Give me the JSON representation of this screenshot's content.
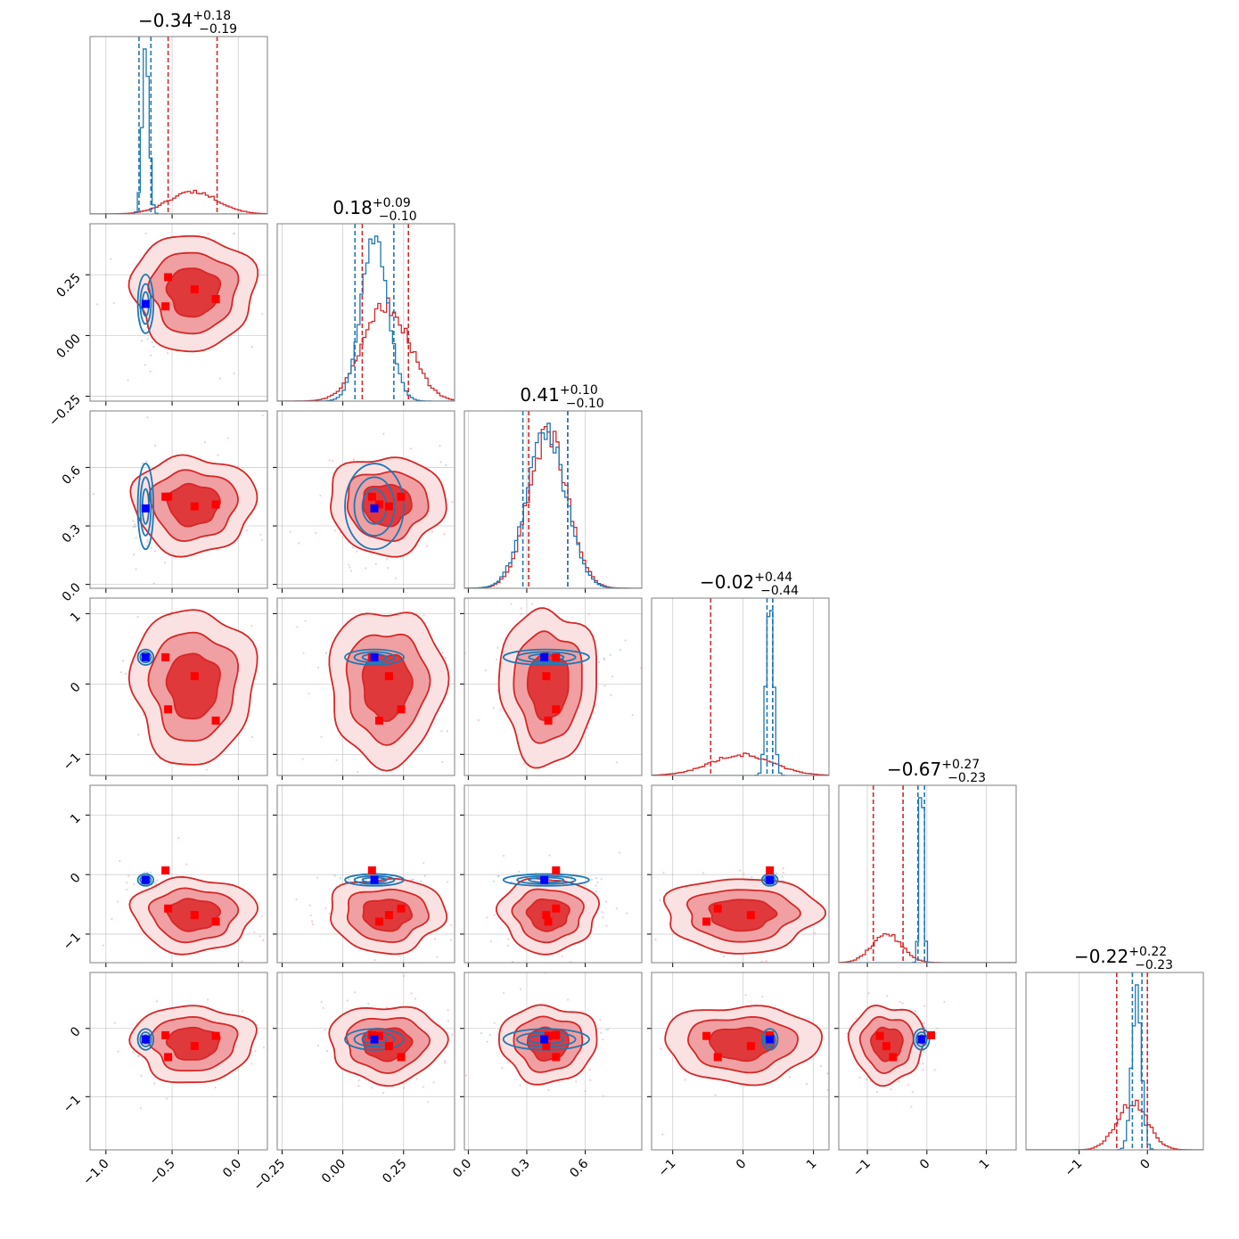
{
  "chart_data": {
    "type": "scatter",
    "subtype": "corner-plot",
    "n_params": 6,
    "colors": {
      "series_a": "#d62728",
      "series_b": "#1f77b4",
      "marker_a": "#ff0000",
      "marker_b": "#0000ff",
      "contour_fill_levels": [
        "#fbe2e2",
        "#f0a0a2",
        "#e0393c"
      ]
    },
    "grid": true,
    "params": [
      {
        "title": {
          "median": "−0.34",
          "plus": "+0.18",
          "minus": "−0.19"
        },
        "range": [
          -1.12,
          0.22
        ],
        "ticks": [
          -1.0,
          -0.5,
          0.0
        ],
        "tick_labels": [
          "−1.0",
          "−0.5",
          "0.0"
        ]
      },
      {
        "title": {
          "median": "0.18",
          "plus": "+0.09",
          "minus": "−0.10"
        },
        "range": [
          -0.27,
          0.46
        ],
        "ticks": [
          -0.25,
          0.0,
          0.25
        ],
        "tick_labels": [
          "−0.25",
          "0.00",
          "0.25"
        ]
      },
      {
        "title": {
          "median": "0.41",
          "plus": "+0.10",
          "minus": "−0.10"
        },
        "range": [
          -0.02,
          0.89
        ],
        "ticks": [
          0.0,
          0.3,
          0.6
        ],
        "tick_labels": [
          "0.0",
          "0.3",
          "0.6"
        ]
      },
      {
        "title": {
          "median": "−0.02",
          "plus": "+0.44",
          "minus": "−0.44"
        },
        "range": [
          -1.3,
          1.22
        ],
        "ticks": [
          -1,
          0,
          1
        ],
        "tick_labels": [
          "−1",
          "0",
          "1"
        ]
      },
      {
        "title": {
          "median": "−0.67",
          "plus": "+0.27",
          "minus": "−0.23"
        },
        "range": [
          -1.48,
          1.5
        ],
        "ticks": [
          -1,
          0,
          1
        ],
        "tick_labels": [
          "−1",
          "0",
          "1"
        ]
      },
      {
        "title": {
          "median": "−0.22",
          "plus": "+0.22",
          "minus": "−0.23"
        },
        "range": [
          -1.78,
          0.82
        ],
        "ticks": [
          -1,
          0
        ],
        "tick_labels": [
          "−1",
          "0"
        ]
      }
    ],
    "series": [
      {
        "color_key": "series_a",
        "centers": [
          -0.34,
          0.18,
          0.41,
          -0.02,
          -0.67,
          -0.22
        ],
        "sigmas": [
          0.185,
          0.095,
          0.1,
          0.44,
          0.25,
          0.225
        ],
        "quantiles": [
          [
            -0.53,
            -0.16
          ],
          [
            0.08,
            0.27
          ],
          [
            0.31,
            0.51
          ],
          [
            -0.46,
            0.42
          ],
          [
            -0.9,
            -0.4
          ],
          [
            -0.45,
            0.0
          ]
        ],
        "markers": [
          [
            -0.55,
            0.12,
            0.45,
            0.38,
            0.07,
            -0.1
          ],
          [
            -0.33,
            0.19,
            0.4,
            0.11,
            -0.68,
            -0.26
          ],
          [
            -0.17,
            0.15,
            0.41,
            -0.52,
            -0.79,
            -0.11
          ],
          [
            -0.53,
            0.24,
            0.45,
            -0.36,
            -0.57,
            -0.42
          ]
        ]
      },
      {
        "color_key": "series_b",
        "centers": [
          -0.7,
          0.13,
          0.4,
          0.38,
          -0.09,
          -0.16
        ],
        "sigmas": [
          0.025,
          0.055,
          0.1,
          0.05,
          0.035,
          0.07
        ],
        "quantiles": [
          [
            -0.75,
            -0.66
          ],
          [
            0.05,
            0.21
          ],
          [
            0.28,
            0.51
          ],
          [
            0.34,
            0.42
          ],
          [
            -0.15,
            -0.04
          ],
          [
            -0.22,
            -0.08
          ]
        ],
        "markers": [
          [
            -0.7,
            0.13,
            0.39,
            0.38,
            -0.09,
            -0.16
          ]
        ]
      }
    ]
  }
}
